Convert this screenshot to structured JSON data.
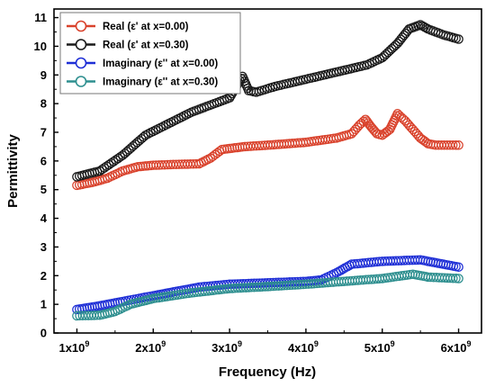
{
  "chart_data": {
    "type": "scatter",
    "xlabel": "Frequency (Hz)",
    "ylabel": "Permittivity",
    "xlim": [
      700000000,
      6300000000
    ],
    "ylim": [
      0,
      11.3
    ],
    "x_ticks": [
      1000000000,
      2000000000,
      3000000000,
      4000000000,
      5000000000,
      6000000000
    ],
    "x_tick_labels": [
      "1x10",
      "2x10",
      "3x10",
      "4x10",
      "5x10",
      "6x10"
    ],
    "x_tick_exponent": "9",
    "y_ticks": [
      0,
      1,
      2,
      3,
      4,
      5,
      6,
      7,
      8,
      9,
      10,
      11
    ],
    "grid": false,
    "legend_position": "top-left",
    "series": [
      {
        "name": "Real (ε' at x=0.00)",
        "color": "#d9422c",
        "x": [
          1000000000.0,
          1200000000.0,
          1400000000.0,
          1600000000.0,
          1800000000.0,
          2000000000.0,
          2300000000.0,
          2600000000.0,
          2750000000.0,
          2900000000.0,
          3200000000.0,
          3500000000.0,
          4000000000.0,
          4400000000.0,
          4600000000.0,
          4700000000.0,
          4780000000.0,
          4850000000.0,
          4930000000.0,
          5000000000.0,
          5100000000.0,
          5200000000.0,
          5300000000.0,
          5400000000.0,
          5500000000.0,
          5600000000.0,
          5700000000.0,
          6000000000.0
        ],
        "values": [
          5.15,
          5.25,
          5.4,
          5.65,
          5.8,
          5.85,
          5.88,
          5.9,
          6.1,
          6.4,
          6.5,
          6.55,
          6.65,
          6.8,
          6.95,
          7.25,
          7.45,
          7.2,
          6.95,
          6.9,
          7.1,
          7.65,
          7.4,
          7.1,
          6.8,
          6.6,
          6.55,
          6.55
        ]
      },
      {
        "name": "Real (ε' at x=0.30)",
        "color": "#1a1a1a",
        "x": [
          1000000000.0,
          1300000000.0,
          1600000000.0,
          1900000000.0,
          2200000000.0,
          2500000000.0,
          2800000000.0,
          3000000000.0,
          3100000000.0,
          3170000000.0,
          3250000000.0,
          3350000000.0,
          3600000000.0,
          4000000000.0,
          4400000000.0,
          4800000000.0,
          5000000000.0,
          5200000000.0,
          5350000000.0,
          5500000000.0,
          5600000000.0,
          5800000000.0,
          6000000000.0
        ],
        "values": [
          5.45,
          5.65,
          6.2,
          6.9,
          7.3,
          7.7,
          8.0,
          8.2,
          8.65,
          8.95,
          8.45,
          8.4,
          8.6,
          8.85,
          9.1,
          9.35,
          9.6,
          10.1,
          10.6,
          10.75,
          10.6,
          10.4,
          10.25
        ]
      },
      {
        "name": "Imaginary (ε'' at x=0.00)",
        "color": "#1f2fd6",
        "x": [
          1000000000.0,
          1300000000.0,
          1600000000.0,
          2000000000.0,
          2300000000.0,
          2600000000.0,
          3000000000.0,
          3500000000.0,
          4000000000.0,
          4200000000.0,
          4400000000.0,
          4600000000.0,
          5000000000.0,
          5500000000.0,
          5800000000.0,
          6000000000.0
        ],
        "values": [
          0.82,
          0.95,
          1.1,
          1.3,
          1.45,
          1.6,
          1.7,
          1.75,
          1.8,
          1.85,
          2.1,
          2.4,
          2.5,
          2.55,
          2.4,
          2.3
        ]
      },
      {
        "name": "Imaginary (ε'' at x=0.30)",
        "color": "#2e8f8f",
        "x": [
          1000000000.0,
          1300000000.0,
          1500000000.0,
          1700000000.0,
          2000000000.0,
          2500000000.0,
          3000000000.0,
          3500000000.0,
          4000000000.0,
          4500000000.0,
          5000000000.0,
          5400000000.0,
          5600000000.0,
          6000000000.0
        ],
        "values": [
          0.6,
          0.62,
          0.75,
          1.0,
          1.2,
          1.4,
          1.55,
          1.62,
          1.7,
          1.8,
          1.9,
          2.05,
          1.95,
          1.9
        ]
      }
    ]
  }
}
